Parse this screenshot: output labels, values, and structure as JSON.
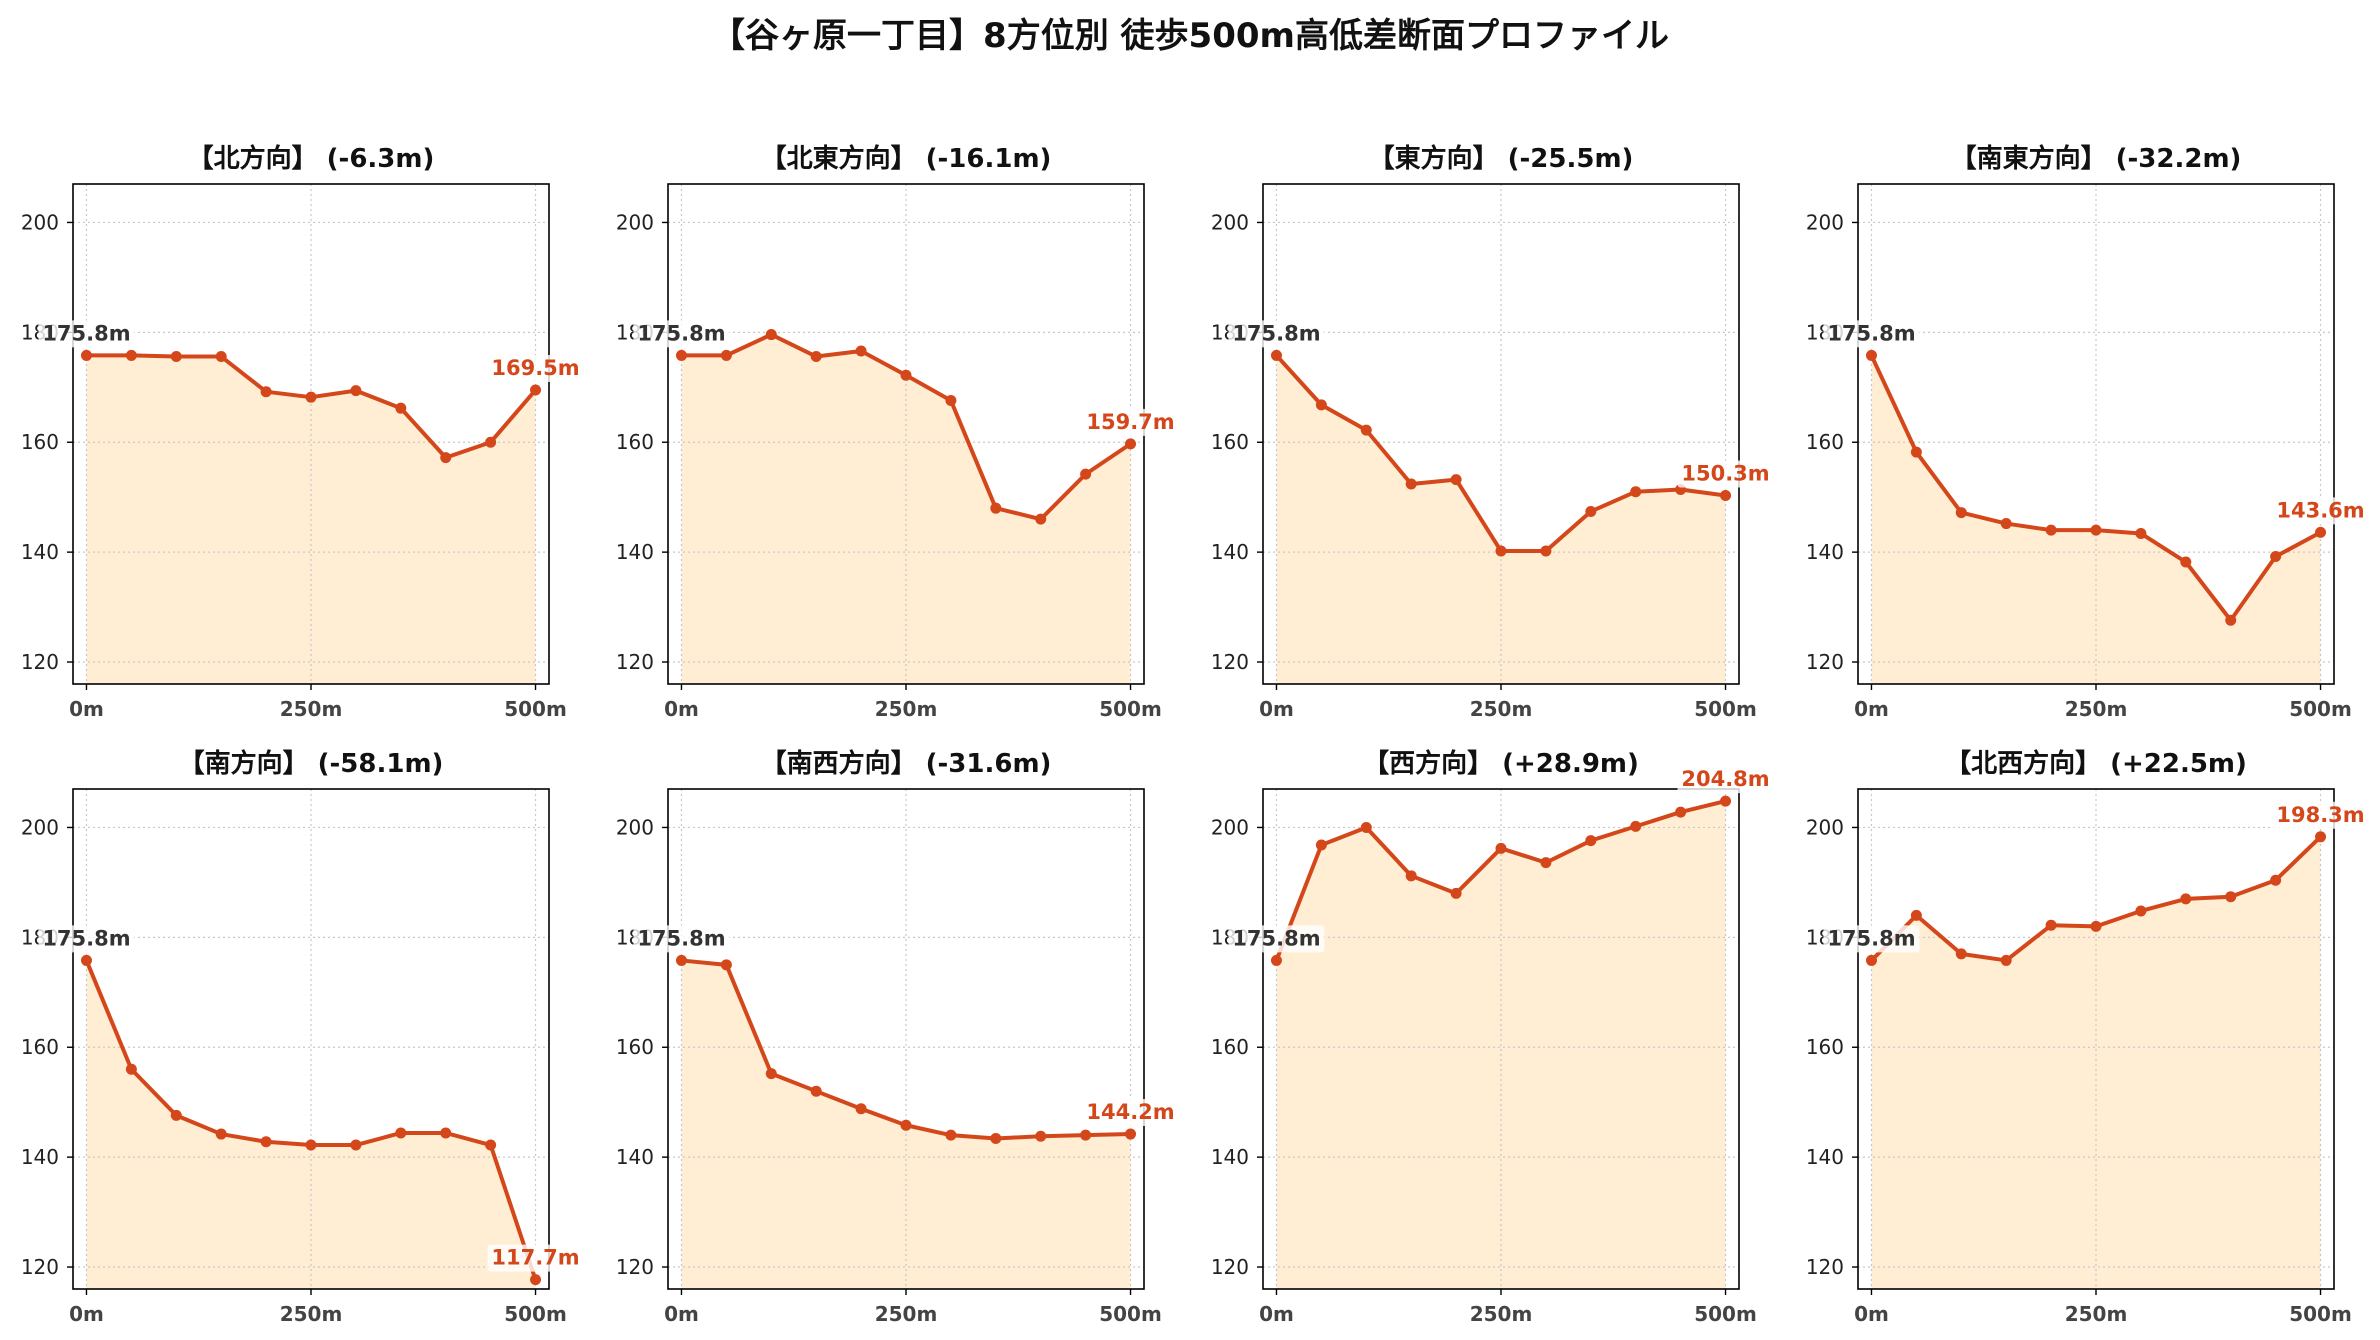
{
  "title": "【谷ヶ原一丁目】8方位別 徒歩500m高低差断面プロファイル",
  "colors": {
    "line": "#d4471a",
    "fill": "#ffedd4",
    "grid": "#c8c8c8",
    "start_label": "#333333",
    "end_label": "#d4471a"
  },
  "chart_data": [
    {
      "type": "area",
      "title": "【北方向】 (-6.3m)",
      "x": [
        0,
        50,
        100,
        150,
        200,
        250,
        300,
        350,
        400,
        450,
        500
      ],
      "y": [
        175.8,
        175.8,
        175.6,
        175.6,
        169.2,
        168.2,
        169.4,
        166.2,
        157.2,
        160.0,
        169.5
      ],
      "start_label": "175.8m",
      "end_label": "169.5m",
      "xticks": [
        "0m",
        "250m",
        "500m"
      ],
      "yticks": [
        "120",
        "140",
        "160",
        "180",
        "200"
      ],
      "ylim": [
        116,
        207
      ],
      "xlim": [
        -15,
        515
      ],
      "grid": true
    },
    {
      "type": "area",
      "title": "【北東方向】 (-16.1m)",
      "x": [
        0,
        50,
        100,
        150,
        200,
        250,
        300,
        350,
        400,
        450,
        500
      ],
      "y": [
        175.8,
        175.8,
        179.6,
        175.6,
        176.6,
        172.2,
        167.6,
        148.0,
        146.0,
        154.2,
        159.7
      ],
      "start_label": "175.8m",
      "end_label": "159.7m",
      "xticks": [
        "0m",
        "250m",
        "500m"
      ],
      "yticks": [
        "120",
        "140",
        "160",
        "180",
        "200"
      ],
      "ylim": [
        116,
        207
      ],
      "xlim": [
        -15,
        515
      ],
      "grid": true
    },
    {
      "type": "area",
      "title": "【東方向】 (-25.5m)",
      "x": [
        0,
        50,
        100,
        150,
        200,
        250,
        300,
        350,
        400,
        450,
        500
      ],
      "y": [
        175.8,
        166.8,
        162.2,
        152.4,
        153.2,
        140.2,
        140.2,
        147.4,
        151.0,
        151.4,
        150.3
      ],
      "start_label": "175.8m",
      "end_label": "150.3m",
      "xticks": [
        "0m",
        "250m",
        "500m"
      ],
      "yticks": [
        "120",
        "140",
        "160",
        "180",
        "200"
      ],
      "ylim": [
        116,
        207
      ],
      "xlim": [
        -15,
        515
      ],
      "grid": true
    },
    {
      "type": "area",
      "title": "【南東方向】 (-32.2m)",
      "x": [
        0,
        50,
        100,
        150,
        200,
        250,
        300,
        350,
        400,
        450,
        500
      ],
      "y": [
        175.8,
        158.2,
        147.2,
        145.2,
        144.0,
        144.0,
        143.4,
        138.2,
        127.6,
        139.2,
        143.6
      ],
      "start_label": "175.8m",
      "end_label": "143.6m",
      "xticks": [
        "0m",
        "250m",
        "500m"
      ],
      "yticks": [
        "120",
        "140",
        "160",
        "180",
        "200"
      ],
      "ylim": [
        116,
        207
      ],
      "xlim": [
        -15,
        515
      ],
      "grid": true
    },
    {
      "type": "area",
      "title": "【南方向】 (-58.1m)",
      "x": [
        0,
        50,
        100,
        150,
        200,
        250,
        300,
        350,
        400,
        450,
        500
      ],
      "y": [
        175.8,
        156.0,
        147.6,
        144.2,
        142.8,
        142.2,
        142.2,
        144.4,
        144.4,
        142.2,
        117.7
      ],
      "start_label": "175.8m",
      "end_label": "117.7m",
      "xticks": [
        "0m",
        "250m",
        "500m"
      ],
      "yticks": [
        "120",
        "140",
        "160",
        "180",
        "200"
      ],
      "ylim": [
        116,
        207
      ],
      "xlim": [
        -15,
        515
      ],
      "grid": true
    },
    {
      "type": "area",
      "title": "【南西方向】 (-31.6m)",
      "x": [
        0,
        50,
        100,
        150,
        200,
        250,
        300,
        350,
        400,
        450,
        500
      ],
      "y": [
        175.8,
        175.0,
        155.2,
        152.0,
        148.8,
        145.8,
        144.0,
        143.4,
        143.8,
        144.0,
        144.2
      ],
      "start_label": "175.8m",
      "end_label": "144.2m",
      "xticks": [
        "0m",
        "250m",
        "500m"
      ],
      "yticks": [
        "120",
        "140",
        "160",
        "180",
        "200"
      ],
      "ylim": [
        116,
        207
      ],
      "xlim": [
        -15,
        515
      ],
      "grid": true
    },
    {
      "type": "area",
      "title": "【西方向】 (+28.9m)",
      "x": [
        0,
        50,
        100,
        150,
        200,
        250,
        300,
        350,
        400,
        450,
        500
      ],
      "y": [
        175.8,
        196.8,
        200.0,
        191.2,
        188.0,
        196.2,
        193.6,
        197.6,
        200.2,
        202.8,
        204.8
      ],
      "start_label": "175.8m",
      "end_label": "204.8m",
      "xticks": [
        "0m",
        "250m",
        "500m"
      ],
      "yticks": [
        "120",
        "140",
        "160",
        "180",
        "200"
      ],
      "ylim": [
        116,
        207
      ],
      "xlim": [
        -15,
        515
      ],
      "grid": true
    },
    {
      "type": "area",
      "title": "【北西方向】 (+22.5m)",
      "x": [
        0,
        50,
        100,
        150,
        200,
        250,
        300,
        350,
        400,
        450,
        500
      ],
      "y": [
        175.8,
        184.0,
        177.0,
        175.8,
        182.2,
        182.0,
        184.8,
        187.0,
        187.4,
        190.4,
        198.3
      ],
      "start_label": "175.8m",
      "end_label": "198.3m",
      "xticks": [
        "0m",
        "250m",
        "500m"
      ],
      "yticks": [
        "120",
        "140",
        "160",
        "180",
        "200"
      ],
      "ylim": [
        116,
        207
      ],
      "xlim": [
        -15,
        515
      ],
      "grid": true
    }
  ]
}
